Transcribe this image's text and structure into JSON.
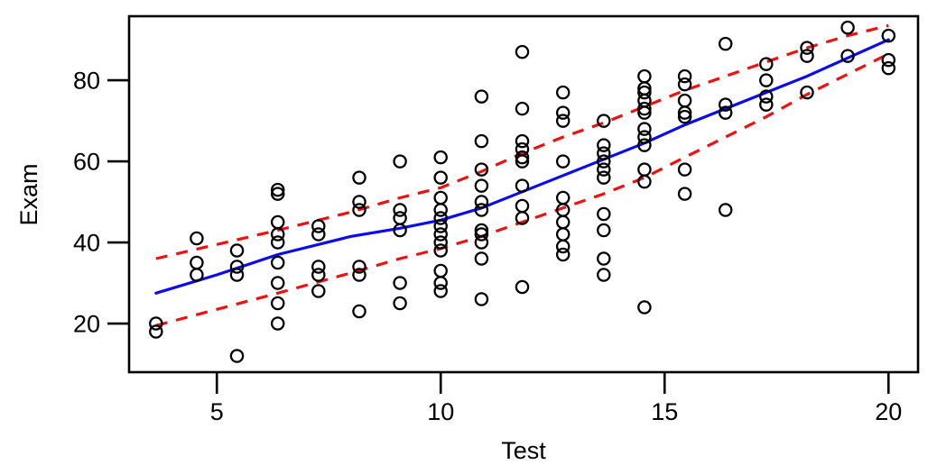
{
  "figure": {
    "background": "#ffffff",
    "frame_color": "#000000"
  },
  "chart_data": {
    "type": "scatter",
    "title": "",
    "xlabel": "Test",
    "ylabel": "Exam",
    "xlim": [
      3.04,
      20.66
    ],
    "ylim": [
      8,
      95.8
    ],
    "x_ticks": [
      5,
      10,
      15,
      20
    ],
    "y_ticks": [
      20,
      40,
      60,
      80
    ],
    "grid": false,
    "legend": "none",
    "marker": "open-circle",
    "colors": {
      "points": "#000000",
      "fit_line": "#0b0bee",
      "band_lines": "#ee1111",
      "axis": "#000000"
    },
    "series": [
      {
        "name": "observations",
        "kind": "scatter",
        "points": [
          [
            3.64,
            20
          ],
          [
            3.64,
            18
          ],
          [
            4.55,
            41
          ],
          [
            4.55,
            35
          ],
          [
            4.55,
            32
          ],
          [
            5.45,
            38
          ],
          [
            5.45,
            34
          ],
          [
            5.45,
            32
          ],
          [
            5.45,
            12
          ],
          [
            6.36,
            53
          ],
          [
            6.36,
            52
          ],
          [
            6.36,
            45
          ],
          [
            6.36,
            42
          ],
          [
            6.36,
            40
          ],
          [
            6.36,
            35
          ],
          [
            6.36,
            30
          ],
          [
            6.36,
            25
          ],
          [
            6.36,
            20
          ],
          [
            7.27,
            44
          ],
          [
            7.27,
            42
          ],
          [
            7.27,
            34
          ],
          [
            7.27,
            32
          ],
          [
            7.27,
            28
          ],
          [
            8.18,
            56
          ],
          [
            8.18,
            50
          ],
          [
            8.18,
            48
          ],
          [
            8.18,
            34
          ],
          [
            8.18,
            32
          ],
          [
            8.18,
            23
          ],
          [
            9.09,
            60
          ],
          [
            9.09,
            48
          ],
          [
            9.09,
            46
          ],
          [
            9.09,
            43
          ],
          [
            9.09,
            30
          ],
          [
            9.09,
            25
          ],
          [
            10.0,
            61
          ],
          [
            10.0,
            56
          ],
          [
            10.0,
            51
          ],
          [
            10.0,
            48
          ],
          [
            10.0,
            46
          ],
          [
            10.0,
            44
          ],
          [
            10.0,
            42
          ],
          [
            10.0,
            40
          ],
          [
            10.0,
            38
          ],
          [
            10.0,
            33
          ],
          [
            10.0,
            30
          ],
          [
            10.0,
            28
          ],
          [
            10.91,
            76
          ],
          [
            10.91,
            65
          ],
          [
            10.91,
            58
          ],
          [
            10.91,
            54
          ],
          [
            10.91,
            50
          ],
          [
            10.91,
            48
          ],
          [
            10.91,
            43
          ],
          [
            10.91,
            42
          ],
          [
            10.91,
            40
          ],
          [
            10.91,
            36
          ],
          [
            10.91,
            26
          ],
          [
            11.82,
            87
          ],
          [
            11.82,
            73
          ],
          [
            11.82,
            65
          ],
          [
            11.82,
            63
          ],
          [
            11.82,
            61
          ],
          [
            11.82,
            60
          ],
          [
            11.82,
            54
          ],
          [
            11.82,
            49
          ],
          [
            11.82,
            46
          ],
          [
            11.82,
            29
          ],
          [
            12.73,
            77
          ],
          [
            12.73,
            72
          ],
          [
            12.73,
            70
          ],
          [
            12.73,
            60
          ],
          [
            12.73,
            51
          ],
          [
            12.73,
            48
          ],
          [
            12.73,
            45
          ],
          [
            12.73,
            42
          ],
          [
            12.73,
            39
          ],
          [
            12.73,
            37
          ],
          [
            13.64,
            70
          ],
          [
            13.64,
            64
          ],
          [
            13.64,
            62
          ],
          [
            13.64,
            60
          ],
          [
            13.64,
            58
          ],
          [
            13.64,
            56
          ],
          [
            13.64,
            47
          ],
          [
            13.64,
            43
          ],
          [
            13.64,
            36
          ],
          [
            13.64,
            32
          ],
          [
            14.55,
            81
          ],
          [
            14.55,
            78
          ],
          [
            14.55,
            77
          ],
          [
            14.55,
            75
          ],
          [
            14.55,
            73
          ],
          [
            14.55,
            72
          ],
          [
            14.55,
            68
          ],
          [
            14.55,
            66
          ],
          [
            14.55,
            64
          ],
          [
            14.55,
            58
          ],
          [
            14.55,
            55
          ],
          [
            14.55,
            24
          ],
          [
            15.45,
            81
          ],
          [
            15.45,
            79
          ],
          [
            15.45,
            75
          ],
          [
            15.45,
            72
          ],
          [
            15.45,
            71
          ],
          [
            15.45,
            58
          ],
          [
            15.45,
            52
          ],
          [
            16.36,
            89
          ],
          [
            16.36,
            74
          ],
          [
            16.36,
            72
          ],
          [
            16.36,
            48
          ],
          [
            17.27,
            84
          ],
          [
            17.27,
            80
          ],
          [
            17.27,
            76
          ],
          [
            17.27,
            74
          ],
          [
            18.18,
            88
          ],
          [
            18.18,
            86
          ],
          [
            18.18,
            77
          ],
          [
            19.09,
            93
          ],
          [
            19.09,
            86
          ],
          [
            20.0,
            91
          ],
          [
            20.0,
            85
          ],
          [
            20.0,
            83
          ]
        ]
      },
      {
        "name": "lowess-fit",
        "kind": "line",
        "style": "solid",
        "points": [
          [
            3.64,
            27.5
          ],
          [
            5.0,
            32
          ],
          [
            6.36,
            37
          ],
          [
            8.0,
            41.5
          ],
          [
            9.09,
            43.5
          ],
          [
            10.0,
            45.5
          ],
          [
            10.91,
            48.5
          ],
          [
            11.82,
            52.5
          ],
          [
            12.73,
            56.5
          ],
          [
            13.64,
            60.5
          ],
          [
            14.55,
            64.5
          ],
          [
            15.45,
            69
          ],
          [
            16.36,
            73
          ],
          [
            17.27,
            77
          ],
          [
            18.18,
            81
          ],
          [
            19.09,
            85.5
          ],
          [
            20.0,
            90
          ]
        ]
      },
      {
        "name": "upper-band",
        "kind": "line",
        "style": "dashed",
        "points": [
          [
            3.64,
            36
          ],
          [
            5.0,
            39.5
          ],
          [
            6.36,
            43
          ],
          [
            8.0,
            47.5
          ],
          [
            9.09,
            51
          ],
          [
            10.0,
            53.5
          ],
          [
            10.91,
            57.5
          ],
          [
            11.82,
            62
          ],
          [
            12.73,
            66
          ],
          [
            13.64,
            69.5
          ],
          [
            14.55,
            73.5
          ],
          [
            15.45,
            77.5
          ],
          [
            16.36,
            81
          ],
          [
            17.27,
            84.5
          ],
          [
            18.18,
            88
          ],
          [
            19.09,
            91
          ],
          [
            20.0,
            93.5
          ]
        ]
      },
      {
        "name": "lower-band",
        "kind": "line",
        "style": "dashed",
        "points": [
          [
            3.64,
            19.5
          ],
          [
            5.0,
            23.5
          ],
          [
            6.36,
            27.5
          ],
          [
            8.0,
            32.5
          ],
          [
            9.09,
            36
          ],
          [
            10.0,
            38.5
          ],
          [
            10.91,
            41.5
          ],
          [
            11.82,
            45
          ],
          [
            12.73,
            48.5
          ],
          [
            13.64,
            52
          ],
          [
            14.55,
            56
          ],
          [
            15.45,
            61
          ],
          [
            16.36,
            66
          ],
          [
            17.27,
            71
          ],
          [
            18.18,
            76.5
          ],
          [
            19.09,
            81.5
          ],
          [
            20.0,
            86.5
          ]
        ]
      }
    ]
  }
}
